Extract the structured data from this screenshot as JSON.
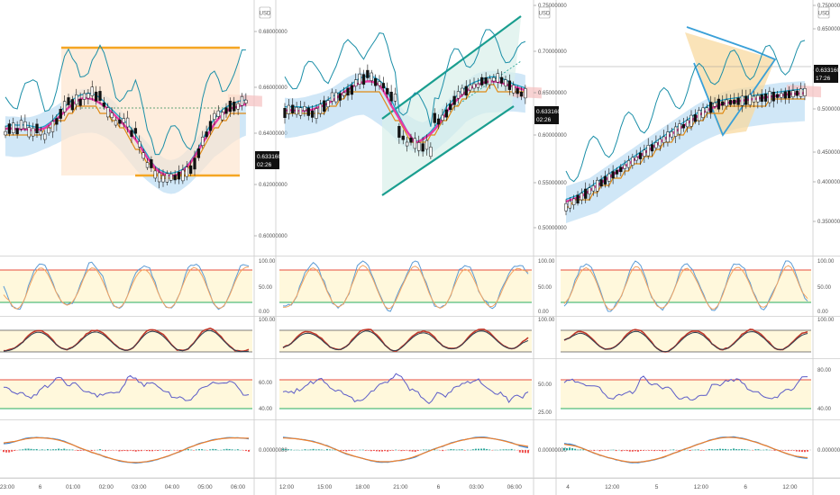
{
  "currency_label": "USD",
  "colors": {
    "sep": "#cccccc",
    "grid": "#f0f0f0",
    "rsiBand": "#fff8dc",
    "stochBand": "#fff8dc",
    "stoch1": "#5b9bd5",
    "stoch2": "#f4a460",
    "stoch3": "#c0392b",
    "stoch3b": "#2c3e50",
    "rsi": "#5b5bc8",
    "upper": "#e74c3c",
    "lower": "#27ae60",
    "macd": "#2e86de",
    "signal": "#f07f2a",
    "histUp": "#26a69a",
    "histDn": "#ef5350",
    "conv": "#1fa2c9",
    "base": "#e08a14",
    "lag": "#1b8fa8",
    "ema": "#e83aa4",
    "cloudG": "#a9d4f0",
    "cloudR": "#f5c1c1",
    "box": "#f5a623",
    "channel": "#1a9e8f",
    "tri": "#3aa0d8"
  },
  "panels": [
    {
      "price_ticks": [
        "0.68000000",
        "0.66000000",
        "0.64000000",
        "0.62000000",
        "0.60000000"
      ],
      "current_price": "0.63316000",
      "current_time": "02:26",
      "x_ticks": [
        "23:00",
        "6",
        "01:00",
        "02:00",
        "03:00",
        "04:00",
        "05:00",
        "06:00"
      ],
      "stoch_ticks": [
        "100.00",
        "50.00",
        "0.00"
      ],
      "stoch2_ticks": [
        "100.00"
      ],
      "rsi_ticks": [
        "60.00",
        "40.00"
      ],
      "macd_ticks": [
        "0.00000000"
      ]
    },
    {
      "price_ticks": [
        "0.75000000",
        "0.70000000",
        "0.65000000",
        "0.60000000",
        "0.55000000",
        "0.50000000"
      ],
      "current_price": "0.63316000",
      "current_time": "02:26",
      "x_ticks": [
        "12:00",
        "15:00",
        "18:00",
        "21:00",
        "6",
        "03:00",
        "06:00"
      ],
      "stoch_ticks": [
        "100.00",
        "50.00",
        "0.00"
      ],
      "stoch2_ticks": [
        "100.00"
      ],
      "rsi_ticks": [
        "50.00",
        "25.00"
      ],
      "macd_ticks": [
        "0.00000000"
      ]
    },
    {
      "price_ticks": [
        "0.75000000",
        "0.65000000",
        "0.55000000",
        "0.50000000",
        "0.45000000",
        "0.40000000",
        "0.35000000"
      ],
      "current_price": "0.63316000",
      "current_time": "17:26",
      "x_ticks": [
        "4",
        "12:00",
        "5",
        "12:00",
        "6",
        "12:00"
      ],
      "stoch_ticks": [
        "100.00",
        "50.00",
        "0.00"
      ],
      "stoch2_ticks": [
        "100.00"
      ],
      "rsi_ticks": [
        "80.00",
        "40.00"
      ],
      "macd_ticks": [
        "0.00000000"
      ]
    }
  ]
}
